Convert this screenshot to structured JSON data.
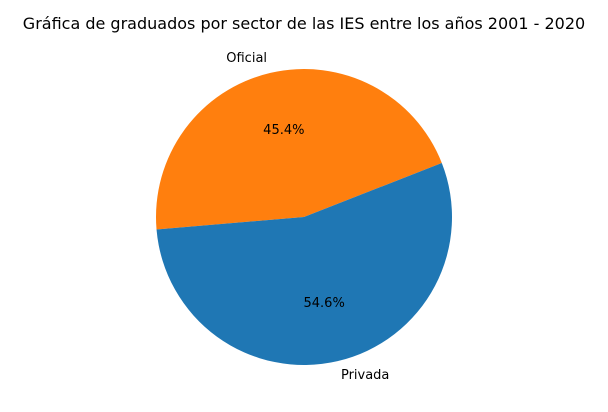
{
  "chart_data": {
    "type": "pie",
    "title": "Gráfica de graduados por sector de las IES entre los años 2001 - 2020",
    "slices": [
      {
        "label": "Oficial",
        "value": 45.4,
        "pct_label": "45.4%",
        "color": "#ff7f0e"
      },
      {
        "label": "Privada",
        "value": 54.6,
        "pct_label": "54.6%",
        "color": "#1f77b4"
      }
    ],
    "start_angle_deg": 21.4,
    "direction": "counterclockwise",
    "legend": "none"
  }
}
